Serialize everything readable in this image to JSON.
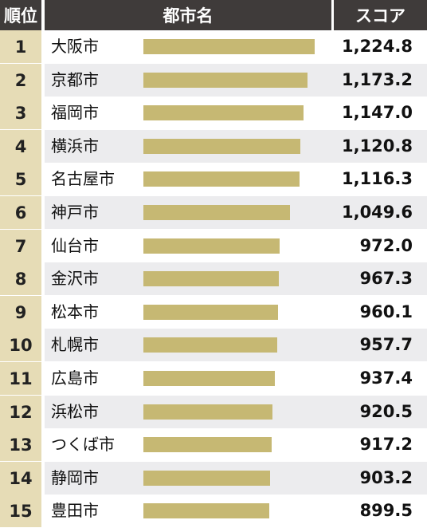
{
  "header": {
    "rank_label": "順位",
    "name_label": "都市名",
    "score_label": "スコア"
  },
  "colors": {
    "header_bg": "#3f3b3a",
    "rank_bg": "#e6dcb6",
    "bar": "#c6b873",
    "alt_row": "#ececee"
  },
  "chart_data": {
    "type": "bar",
    "orientation": "horizontal",
    "categories": [
      "大阪市",
      "京都市",
      "福岡市",
      "横浜市",
      "名古屋市",
      "神戸市",
      "仙台市",
      "金沢市",
      "松本市",
      "札幌市",
      "広島市",
      "浜松市",
      "つくば市",
      "静岡市",
      "豊田市"
    ],
    "ranks": [
      "1",
      "2",
      "3",
      "4",
      "5",
      "6",
      "7",
      "8",
      "9",
      "10",
      "11",
      "12",
      "13",
      "14",
      "15"
    ],
    "values": [
      1224.8,
      1173.2,
      1147.0,
      1120.8,
      1116.3,
      1049.6,
      972.0,
      967.3,
      960.1,
      957.7,
      937.4,
      920.5,
      917.2,
      903.2,
      899.5
    ],
    "value_labels": [
      "1,224.8",
      "1,173.2",
      "1,147.0",
      "1,120.8",
      "1,116.3",
      "1,049.6",
      "972.0",
      "967.3",
      "960.1",
      "957.7",
      "937.4",
      "920.5",
      "917.2",
      "903.2",
      "899.5"
    ],
    "xlim": [
      0,
      1224.8
    ]
  }
}
